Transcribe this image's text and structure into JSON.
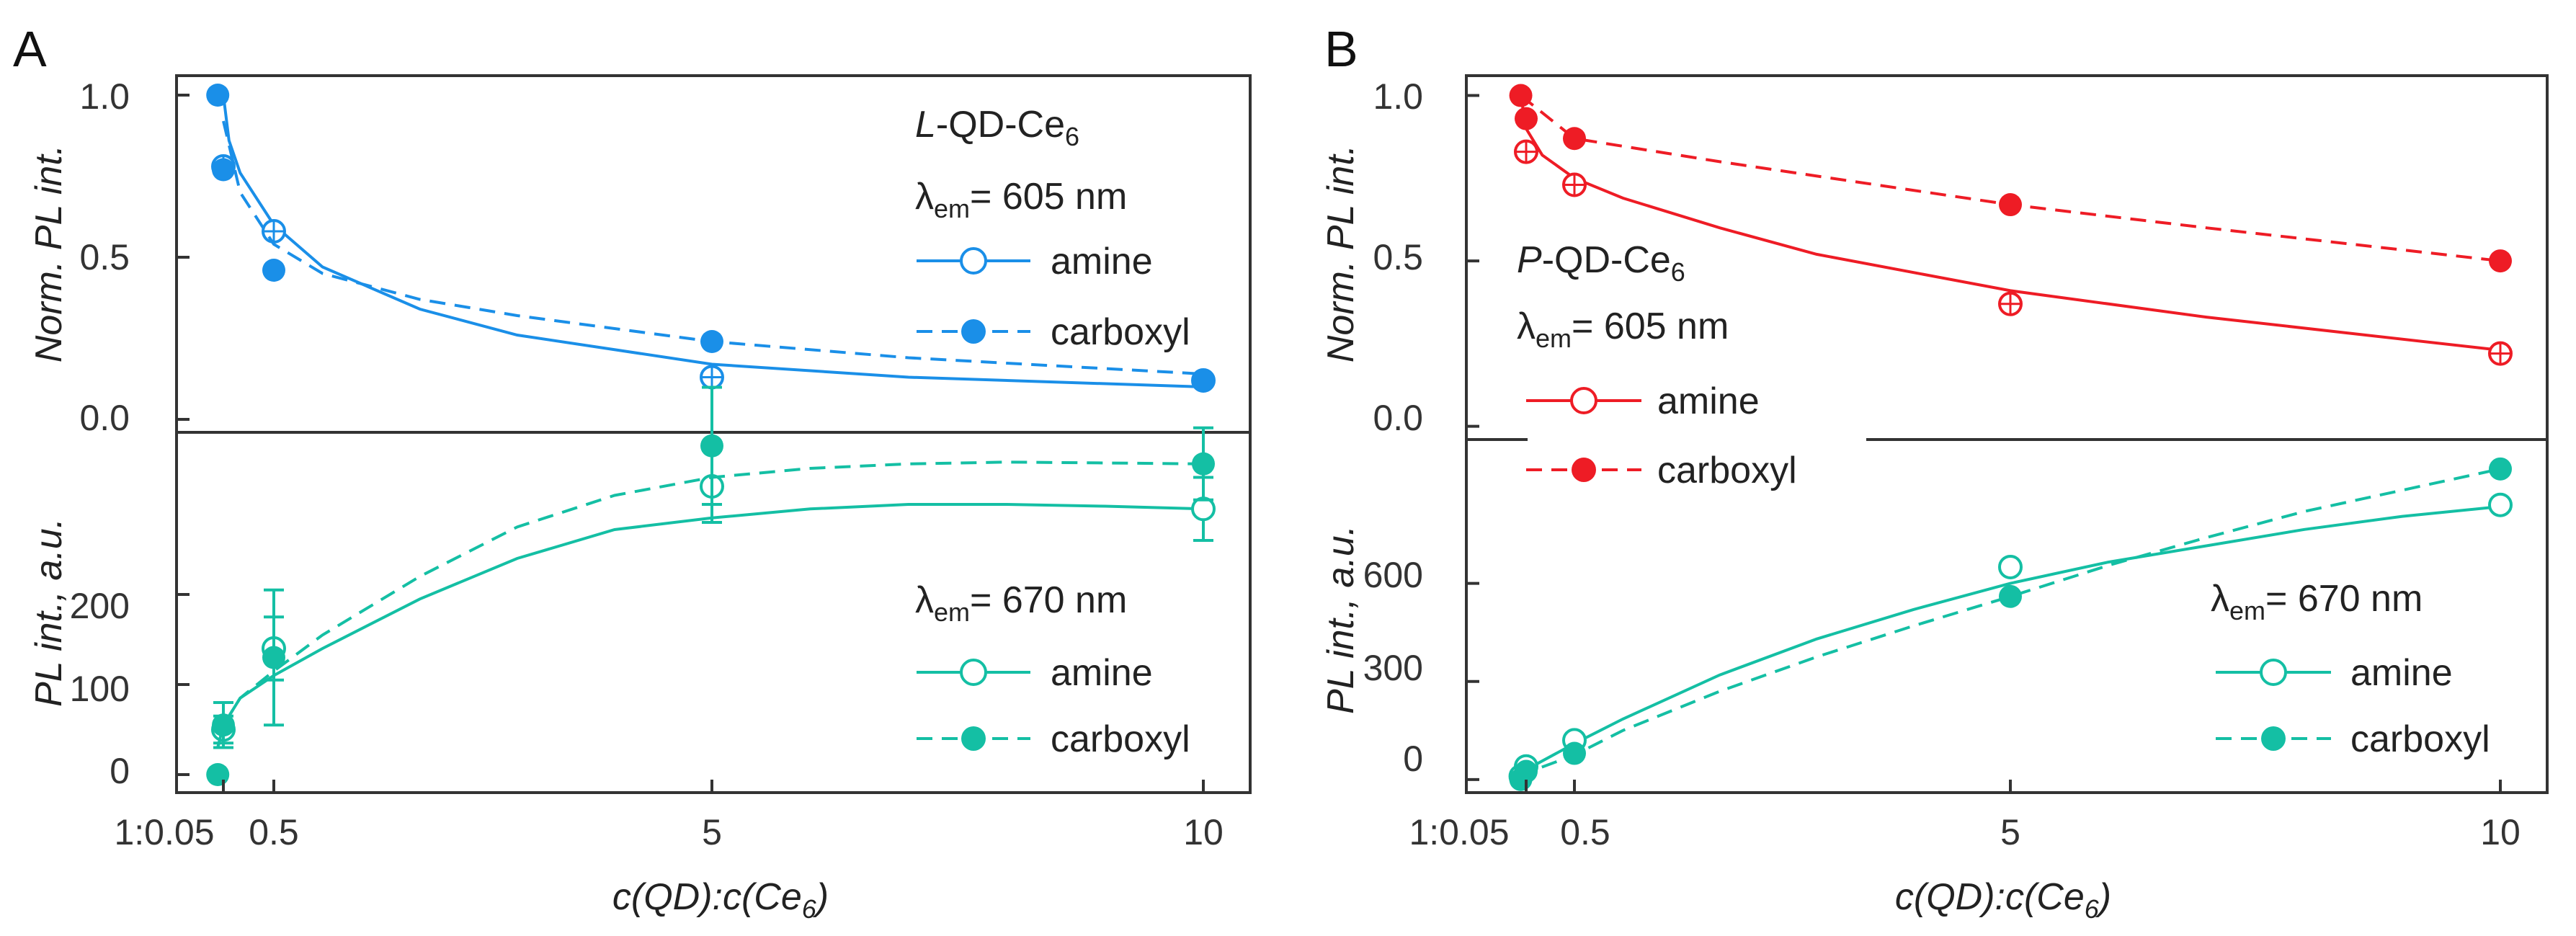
{
  "colors": {
    "blue": "#1a8fe8",
    "teal": "#14bfa4",
    "red": "#ee1c25",
    "axis": "#333333"
  },
  "chart_data": [
    {
      "type": "scatter",
      "panel": "A",
      "xlabel_prefix": "c(QD):c(Ce",
      "xlabel_sub": "6",
      "xlabel_suffix": ")",
      "x_ticks": [
        {
          "value": 0.05,
          "label": "1:0.05"
        },
        {
          "value": 0.5,
          "label": "0.5"
        },
        {
          "value": 5,
          "label": "5"
        },
        {
          "value": 10,
          "label": "10"
        }
      ],
      "top": {
        "ylabel": "Norm. PL int.",
        "ylim": [
          -0.04,
          1.06
        ],
        "y_ticks": [
          "0.0",
          "0.5",
          "1.0"
        ],
        "title_italic": "L",
        "title_main": "-QD-Ce",
        "title_sub": "6",
        "lambda_symbol": "λ",
        "lambda_sub": "em",
        "lambda_text": "= 605 nm",
        "series": [
          {
            "name": "amine",
            "marker": "open-cross",
            "line": "solid",
            "points": [
              [
                0.05,
                0.78
              ],
              [
                0.5,
                0.58
              ],
              [
                5,
                0.13
              ],
              [
                10,
                0.12
              ]
            ],
            "fit": [
              [
                0.05,
                1.0
              ],
              [
                0.1,
                0.86
              ],
              [
                0.2,
                0.76
              ],
              [
                0.5,
                0.6
              ],
              [
                1,
                0.47
              ],
              [
                2,
                0.34
              ],
              [
                3,
                0.26
              ],
              [
                5,
                0.17
              ],
              [
                7,
                0.13
              ],
              [
                10,
                0.1
              ]
            ]
          },
          {
            "name": "carboxyl",
            "marker": "filled",
            "line": "dashed",
            "points": [
              [
                0.0,
                1.0
              ],
              [
                0.05,
                0.77
              ],
              [
                0.5,
                0.46
              ],
              [
                5,
                0.24
              ],
              [
                10,
                0.12
              ]
            ],
            "fit": [
              [
                0.05,
                0.92
              ],
              [
                0.2,
                0.7
              ],
              [
                0.5,
                0.54
              ],
              [
                1,
                0.45
              ],
              [
                2,
                0.37
              ],
              [
                3,
                0.32
              ],
              [
                5,
                0.24
              ],
              [
                7,
                0.19
              ],
              [
                10,
                0.14
              ]
            ]
          }
        ]
      },
      "bottom": {
        "ylabel": "PL int., a.u.",
        "ylim": [
          -20,
          380
        ],
        "y_ticks": [
          "0",
          "100",
          "200"
        ],
        "lambda_symbol": "λ",
        "lambda_sub": "em",
        "lambda_text": "= 670 nm",
        "series": [
          {
            "name": "amine",
            "marker": "open",
            "line": "solid",
            "points": [
              [
                0.05,
                50,
                15
              ],
              [
                0.5,
                140,
                35
              ],
              [
                5,
                320,
                40
              ],
              [
                10,
                295,
                35
              ]
            ],
            "fit": [
              [
                0.0,
                30
              ],
              [
                0.05,
                55
              ],
              [
                0.2,
                85
              ],
              [
                0.5,
                110
              ],
              [
                1,
                140
              ],
              [
                2,
                195
              ],
              [
                3,
                240
              ],
              [
                4,
                272
              ],
              [
                5,
                285
              ],
              [
                6,
                295
              ],
              [
                7,
                300
              ],
              [
                8,
                300
              ],
              [
                9,
                298
              ],
              [
                10,
                295
              ]
            ]
          },
          {
            "name": "carboxyl",
            "marker": "filled",
            "line": "dashed",
            "points": [
              [
                0.0,
                0,
                0
              ],
              [
                0.05,
                55,
                25
              ],
              [
                0.5,
                130,
                75
              ],
              [
                5,
                365,
                65
              ],
              [
                10,
                345,
                40
              ]
            ],
            "fit": [
              [
                0.0,
                30
              ],
              [
                0.05,
                55
              ],
              [
                0.2,
                85
              ],
              [
                0.5,
                115
              ],
              [
                1,
                155
              ],
              [
                2,
                220
              ],
              [
                3,
                275
              ],
              [
                4,
                310
              ],
              [
                5,
                330
              ],
              [
                6,
                340
              ],
              [
                7,
                345
              ],
              [
                8,
                347
              ],
              [
                9,
                346
              ],
              [
                10,
                345
              ]
            ]
          }
        ]
      }
    },
    {
      "type": "scatter",
      "panel": "B",
      "xlabel_prefix": "c(QD):c(Ce",
      "xlabel_sub": "6",
      "xlabel_suffix": ")",
      "x_ticks": [
        {
          "value": 0.05,
          "label": "1:0.05"
        },
        {
          "value": 0.5,
          "label": "0.5"
        },
        {
          "value": 5,
          "label": "5"
        },
        {
          "value": 10,
          "label": "10"
        }
      ],
      "top": {
        "ylabel": "Norm. PL int.",
        "ylim": [
          -0.04,
          1.06
        ],
        "y_ticks": [
          "0.0",
          "0.5",
          "1.0"
        ],
        "title_italic": "P",
        "title_main": "-QD-Ce",
        "title_sub": "6",
        "lambda_symbol": "λ",
        "lambda_sub": "em",
        "lambda_text": "= 605 nm",
        "series": [
          {
            "name": "amine",
            "marker": "open-cross",
            "line": "solid",
            "points": [
              [
                0.05,
                0.83
              ],
              [
                0.5,
                0.73
              ],
              [
                5,
                0.37
              ],
              [
                10,
                0.22
              ]
            ],
            "fit": [
              [
                0.0,
                1.0
              ],
              [
                0.05,
                0.9
              ],
              [
                0.2,
                0.82
              ],
              [
                0.5,
                0.75
              ],
              [
                1,
                0.69
              ],
              [
                2,
                0.6
              ],
              [
                3,
                0.52
              ],
              [
                5,
                0.41
              ],
              [
                7,
                0.33
              ],
              [
                10,
                0.23
              ]
            ]
          },
          {
            "name": "carboxyl",
            "marker": "filled",
            "line": "dashed",
            "points": [
              [
                0.0,
                1.0
              ],
              [
                0.05,
                0.93
              ],
              [
                0.5,
                0.87
              ],
              [
                5,
                0.67
              ],
              [
                10,
                0.5
              ]
            ],
            "fit": [
              [
                0.0,
                1.0
              ],
              [
                0.5,
                0.87
              ],
              [
                2,
                0.8
              ],
              [
                5,
                0.67
              ],
              [
                7,
                0.6
              ],
              [
                10,
                0.5
              ]
            ]
          }
        ]
      },
      "bottom": {
        "ylabel": "PL int., a.u.",
        "ylim": [
          -40,
          1040
        ],
        "y_ticks": [
          "0",
          "300",
          "600"
        ],
        "lambda_symbol": "λ",
        "lambda_sub": "em",
        "lambda_text": "= 670 nm",
        "series": [
          {
            "name": "amine",
            "marker": "open",
            "line": "solid",
            "points": [
              [
                0.0,
                10
              ],
              [
                0.05,
                40
              ],
              [
                0.5,
                120
              ],
              [
                5,
                650
              ],
              [
                10,
                840
              ]
            ],
            "fit": [
              [
                0.0,
                5
              ],
              [
                0.05,
                30
              ],
              [
                0.5,
                110
              ],
              [
                1,
                185
              ],
              [
                2,
                320
              ],
              [
                3,
                430
              ],
              [
                4,
                520
              ],
              [
                5,
                600
              ],
              [
                6,
                665
              ],
              [
                7,
                715
              ],
              [
                8,
                765
              ],
              [
                9,
                805
              ],
              [
                10,
                835
              ]
            ]
          },
          {
            "name": "carboxyl",
            "marker": "filled",
            "line": "dashed",
            "points": [
              [
                0.0,
                0
              ],
              [
                0.05,
                25
              ],
              [
                0.5,
                80
              ],
              [
                5,
                560
              ],
              [
                10,
                950
              ]
            ],
            "fit": [
              [
                0.0,
                0
              ],
              [
                0.05,
                20
              ],
              [
                0.5,
                75
              ],
              [
                1,
                150
              ],
              [
                2,
                270
              ],
              [
                3,
                375
              ],
              [
                4,
                470
              ],
              [
                5,
                560
              ],
              [
                6,
                655
              ],
              [
                7,
                740
              ],
              [
                8,
                820
              ],
              [
                9,
                885
              ],
              [
                10,
                950
              ]
            ]
          }
        ]
      }
    }
  ]
}
